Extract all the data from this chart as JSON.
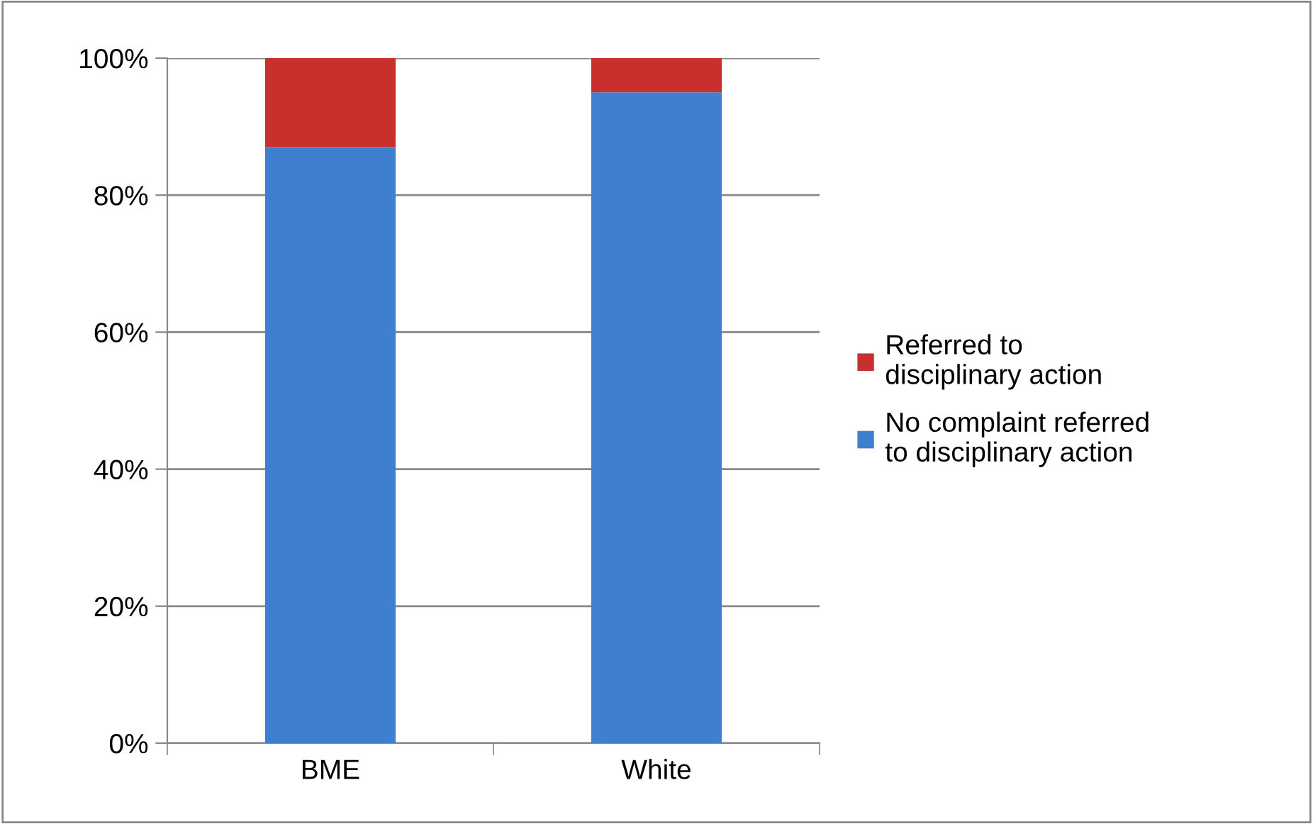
{
  "chart_data": {
    "type": "bar",
    "stacked": true,
    "categories": [
      "BME",
      "White"
    ],
    "series": [
      {
        "name": "No complaint referred to disciplinary action",
        "color": "#3f7fcf",
        "values": [
          87,
          95
        ]
      },
      {
        "name": "Referred to disciplinary action",
        "color": "#c8302e",
        "values": [
          13,
          5
        ]
      }
    ],
    "ylim": [
      0,
      100
    ],
    "yticks": [
      {
        "value": 0,
        "label": "0%"
      },
      {
        "value": 20,
        "label": "20%"
      },
      {
        "value": 40,
        "label": "40%"
      },
      {
        "value": 60,
        "label": "60%"
      },
      {
        "value": 80,
        "label": "80%"
      },
      {
        "value": 100,
        "label": "100%"
      }
    ],
    "grid": "y",
    "legend": "right"
  }
}
